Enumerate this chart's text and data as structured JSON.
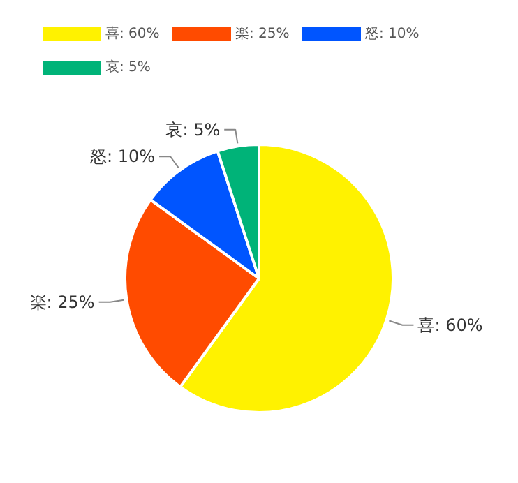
{
  "chart_data": {
    "type": "pie",
    "categories": [
      "喜: 60%",
      "楽: 25%",
      "怒: 10%",
      "哀: 5%"
    ],
    "values": [
      60,
      25,
      10,
      5
    ],
    "colors": [
      "#fff200",
      "#ff4b00",
      "#0055ff",
      "#00b378"
    ],
    "legend": "top left"
  }
}
